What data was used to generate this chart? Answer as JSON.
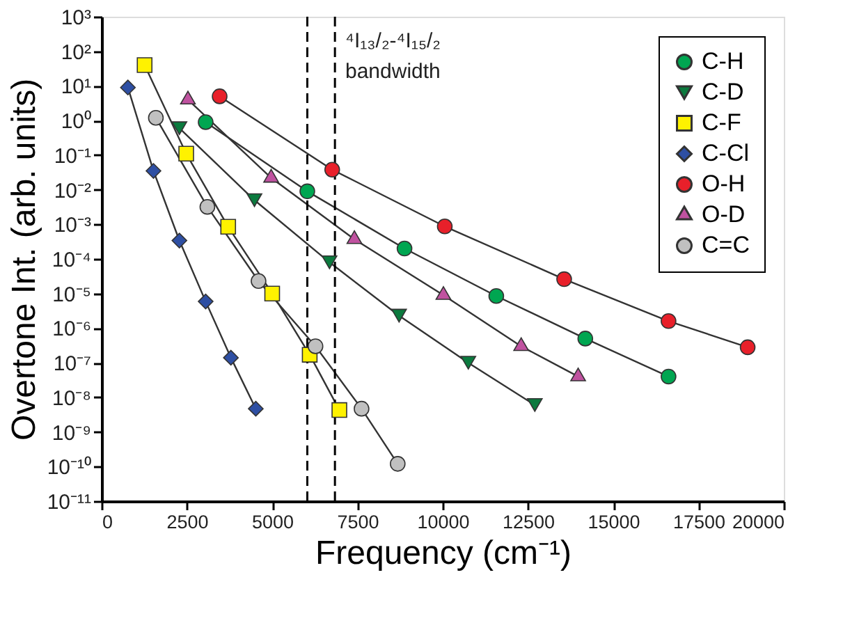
{
  "chart_data": {
    "type": "line",
    "xlabel": "Frequency (cm⁻¹)",
    "ylabel": "Overtone Int. (arb. units)",
    "log": "y",
    "xlim": [
      0,
      20000
    ],
    "xticks": [
      0,
      2500,
      5000,
      7500,
      10000,
      12500,
      15000,
      17500,
      20000
    ],
    "ylim": [
      1e-11,
      1000
    ],
    "yticks": [
      {
        "value": 1000,
        "label": "10³"
      },
      {
        "value": 100,
        "label": "10²"
      },
      {
        "value": 10,
        "label": "10¹"
      },
      {
        "value": 1,
        "label": "10⁰"
      },
      {
        "value": 0.1,
        "label": "10⁻¹"
      },
      {
        "value": 0.01,
        "label": "10⁻²"
      },
      {
        "value": 0.001,
        "label": "10⁻³"
      },
      {
        "value": 0.0001,
        "label": "10⁻⁴"
      },
      {
        "value": 1e-05,
        "label": "10⁻⁵"
      },
      {
        "value": 1e-06,
        "label": "10⁻⁶"
      },
      {
        "value": 1e-07,
        "label": "10⁻⁷"
      },
      {
        "value": 1e-08,
        "label": "10⁻⁸"
      },
      {
        "value": 1e-09,
        "label": "10⁻⁹"
      },
      {
        "value": 1e-10,
        "label": "10⁻¹⁰"
      },
      {
        "value": 1e-11,
        "label": "10⁻¹¹"
      }
    ],
    "grid": false,
    "legend": "top right",
    "line_style": "solid",
    "series": [
      {
        "name": "C-H",
        "color": "#00a651",
        "marker": "circle",
        "x": [
          3050,
          6030,
          8880,
          11570,
          14180,
          16620
        ],
        "values": [
          0.9,
          0.009,
          0.0002,
          8.5e-06,
          5e-07,
          4e-08
        ]
      },
      {
        "name": "C-D",
        "color": "#0b7a3e",
        "marker": "triangle-down",
        "x": [
          2280,
          4480,
          6680,
          8720,
          10750,
          12700
        ],
        "values": [
          0.6,
          0.005,
          8e-05,
          2.3e-06,
          1e-07,
          6e-09
        ]
      },
      {
        "name": "C-F",
        "color": "#fff200",
        "marker": "square",
        "x": [
          1260,
          2480,
          3710,
          5000,
          6100,
          6970
        ],
        "values": [
          40,
          0.11,
          0.00085,
          1e-05,
          1.7e-07,
          4.3e-09
        ]
      },
      {
        "name": "C-Cl",
        "color": "#2e4fa3",
        "marker": "diamond",
        "x": [
          770,
          1520,
          2280,
          3050,
          3790,
          4520
        ],
        "values": [
          9,
          0.035,
          0.00034,
          5.9e-06,
          1.4e-07,
          4.7e-09
        ]
      },
      {
        "name": "O-H",
        "color": "#e8202a",
        "marker": "circle",
        "x": [
          3460,
          6760,
          10060,
          13560,
          16620,
          18940
        ],
        "values": [
          5,
          0.038,
          0.00087,
          2.6e-05,
          1.6e-06,
          2.8e-07
        ]
      },
      {
        "name": "O-D",
        "color": "#c052a0",
        "marker": "triangle",
        "x": [
          2530,
          4970,
          7410,
          10020,
          12300,
          13970
        ],
        "values": [
          4,
          0.022,
          0.00037,
          9e-06,
          3e-07,
          4e-08
        ]
      },
      {
        "name": "C=C",
        "color": "#c0c0c0",
        "marker": "circle",
        "x": [
          1590,
          3100,
          4600,
          6270,
          7620,
          8680
        ],
        "values": [
          1.2,
          0.0032,
          2.3e-05,
          3e-07,
          4.7e-09,
          1.2e-10
        ]
      }
    ],
    "ref_lines": [
      {
        "axis": "x",
        "value": 6030,
        "line_style": "dashed",
        "color": "#000000"
      },
      {
        "axis": "x",
        "value": 6840,
        "line_style": "dashed",
        "color": "#000000"
      }
    ],
    "annotations": [
      "⁴I₁₃/₂-⁴I₁₅/₂\nbandwidth"
    ]
  }
}
